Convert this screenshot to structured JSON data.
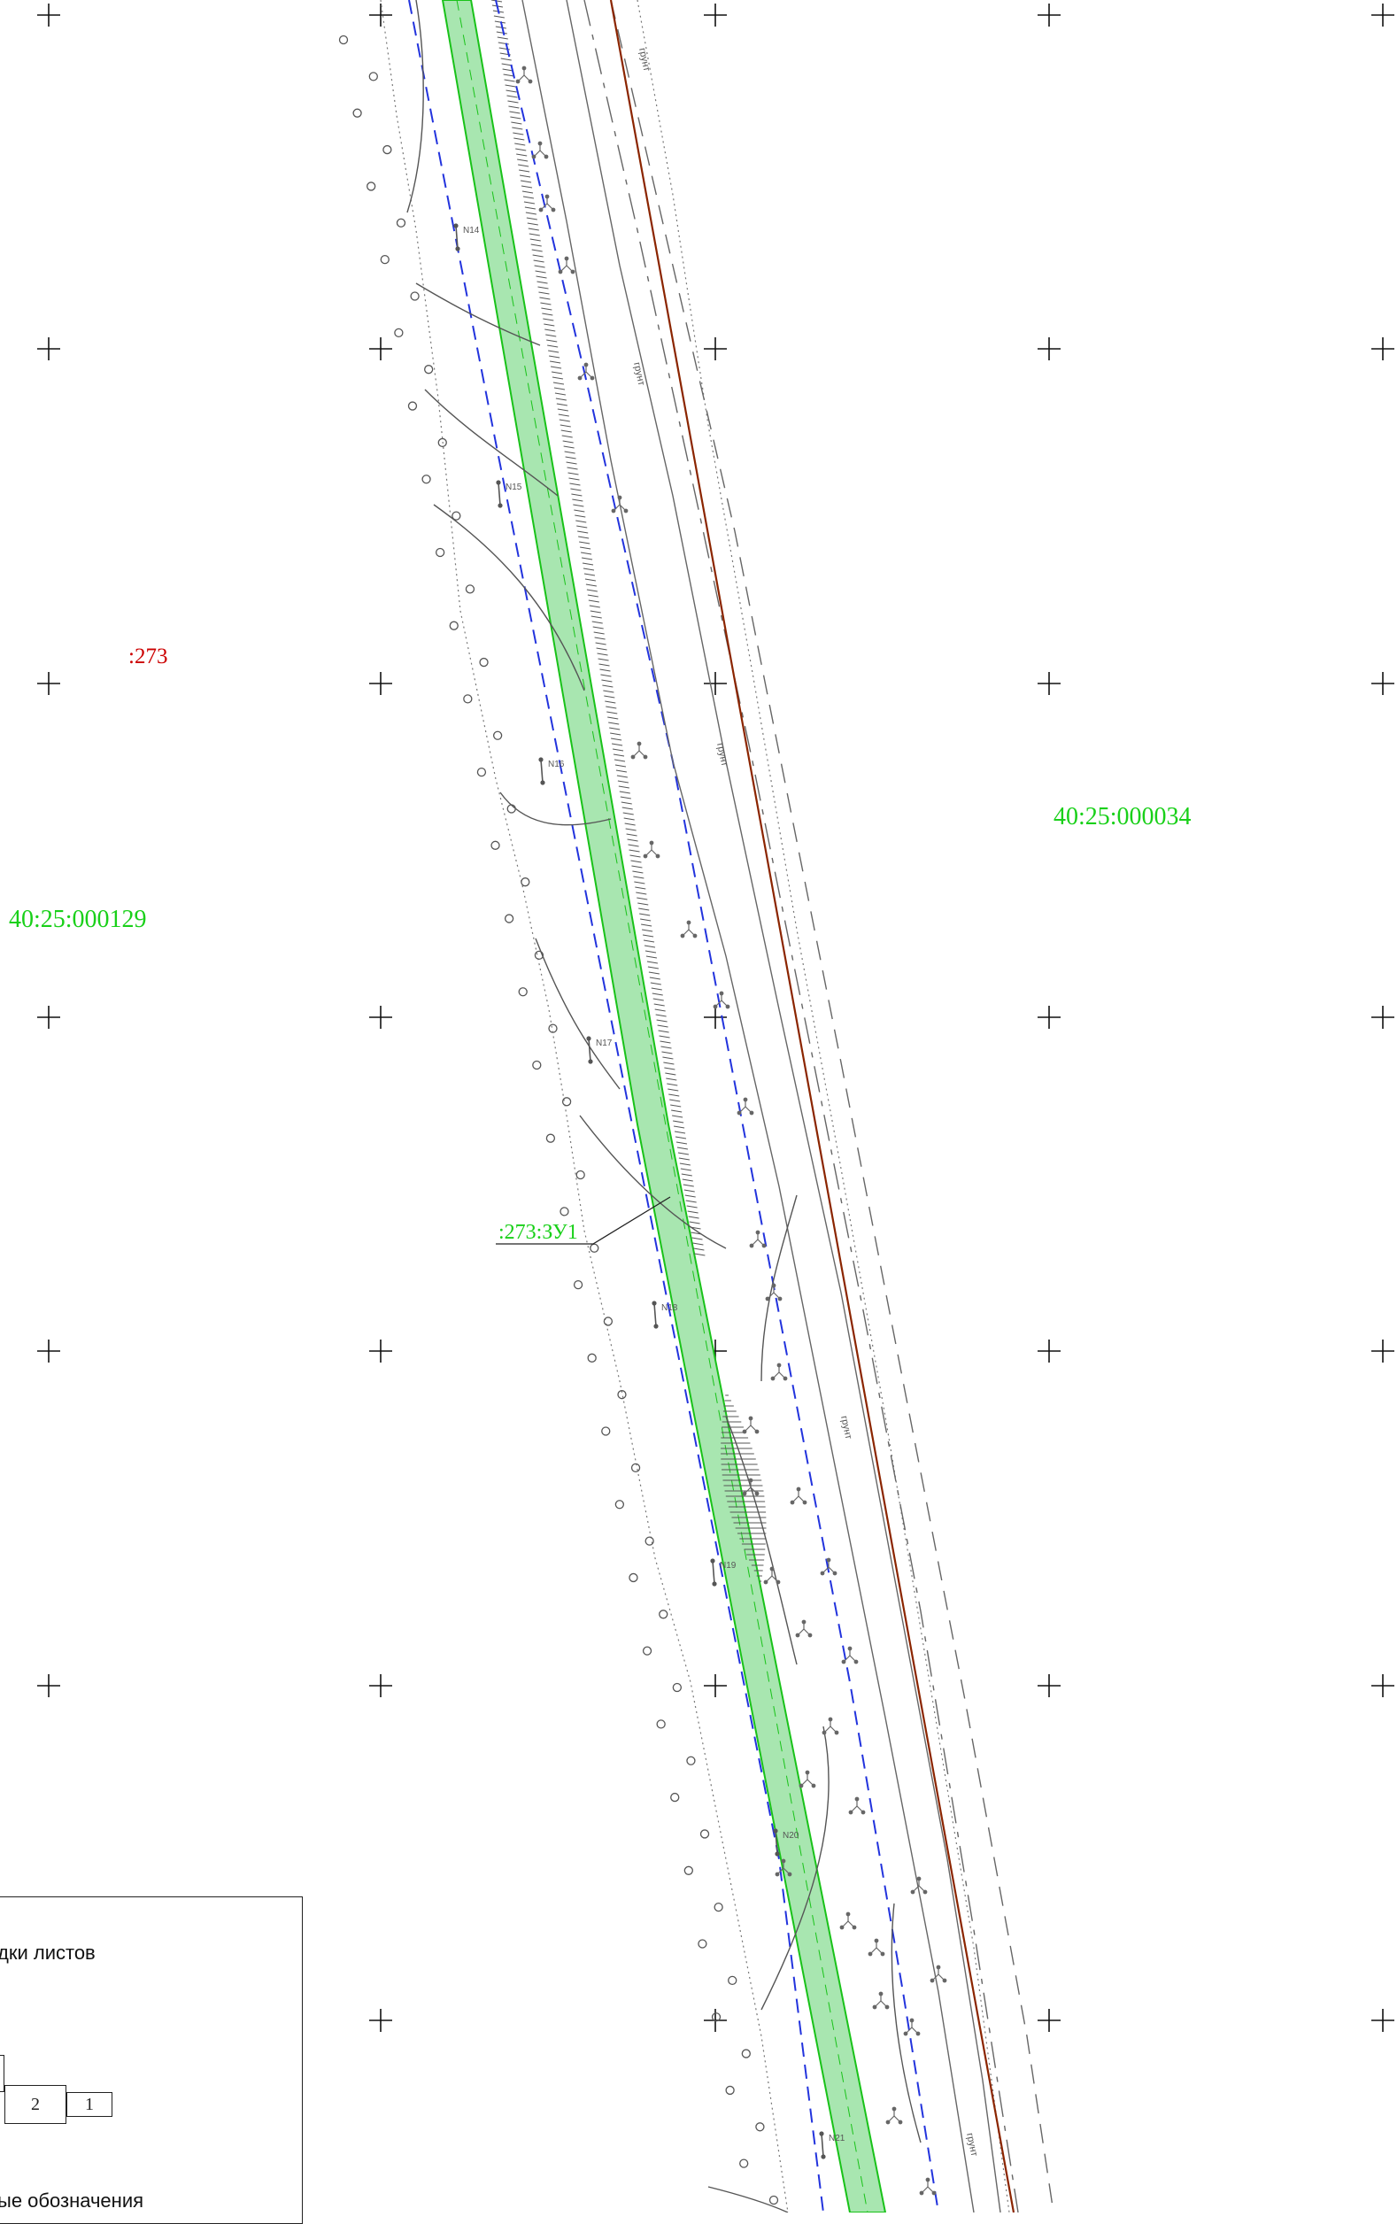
{
  "map": {
    "labels": {
      "parcel_273": ":273",
      "quarter_129": "40:25:000129",
      "quarter_034": "40:25:000034",
      "plot_zu1": ":273:ЗУ1"
    },
    "points": [
      "N14",
      "N15",
      "N16",
      "N17",
      "N18",
      "N19",
      "N20",
      "N21"
    ],
    "soil_labels": [
      "грунт",
      "грунт",
      "грунт",
      "грунт",
      "грунт"
    ],
    "colors": {
      "parcel_fill": "#a8e6b0",
      "parcel_edge": "#19c219",
      "boundary_blue": "#2233dd",
      "road_edge": "#8b2500",
      "label_red": "#cc0000",
      "label_green": "#19d019",
      "line_gray": "#555555"
    }
  },
  "legend": {
    "title": "дки листов",
    "subtitle": "ые обозначения",
    "sheet_2": "2",
    "sheet_1": "1"
  }
}
